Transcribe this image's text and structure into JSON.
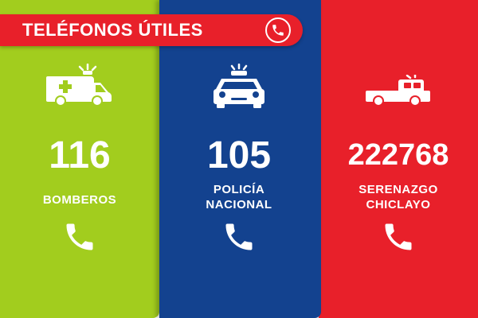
{
  "banner": {
    "title": "TELÉFONOS ÚTILES",
    "icon": "phone-circle-icon"
  },
  "colors": {
    "green": "#a2cd1e",
    "blue": "#13428f",
    "red": "#e8202a",
    "text": "#ffffff"
  },
  "cards": [
    {
      "number": "116",
      "label_line1": "BOMBEROS",
      "label_line2": "",
      "icon": "ambulance-icon"
    },
    {
      "number": "105",
      "label_line1": "POLICÍA",
      "label_line2": "NACIONAL",
      "icon": "police-car-icon"
    },
    {
      "number": "222768",
      "label_line1": "SERENAZGO",
      "label_line2": "CHICLAYO",
      "icon": "pickup-truck-icon"
    }
  ]
}
